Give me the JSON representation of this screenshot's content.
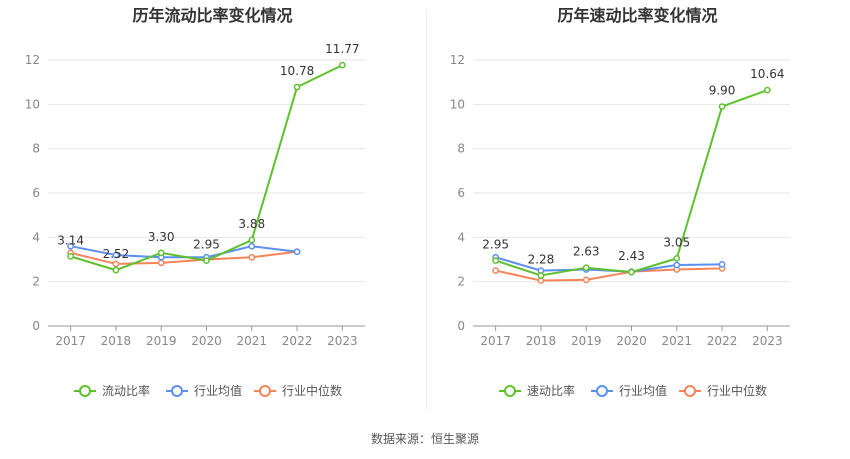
{
  "source_label": "数据来源：恒生聚源",
  "colors": {
    "main": "#5ec12c",
    "avg": "#5b8ff0",
    "median": "#f5845a",
    "grid": "#e6e6e6",
    "axis": "#999999"
  },
  "chart_data": [
    {
      "type": "line",
      "title": "历年流动比率变化情况",
      "x": [
        "2017",
        "2018",
        "2019",
        "2020",
        "2021",
        "2022",
        "2023"
      ],
      "ylim": [
        0,
        12
      ],
      "yticks": [
        0,
        2,
        4,
        6,
        8,
        10,
        12
      ],
      "grid": true,
      "legend_position": "bottom",
      "series": [
        {
          "name": "流动比率",
          "values": [
            3.14,
            2.52,
            3.3,
            2.95,
            3.88,
            10.78,
            11.77
          ],
          "labels": [
            "3.14",
            "2.52",
            "3.30",
            "2.95",
            "3.88",
            "10.78",
            "11.77"
          ]
        },
        {
          "name": "行业均值",
          "values": [
            3.6,
            3.2,
            3.1,
            3.1,
            3.6,
            3.35,
            null
          ]
        },
        {
          "name": "行业中位数",
          "values": [
            3.3,
            2.8,
            2.85,
            3.0,
            3.1,
            3.35,
            null
          ]
        }
      ]
    },
    {
      "type": "line",
      "title": "历年速动比率变化情况",
      "x": [
        "2017",
        "2018",
        "2019",
        "2020",
        "2021",
        "2022",
        "2023"
      ],
      "ylim": [
        0,
        12
      ],
      "yticks": [
        0,
        2,
        4,
        6,
        8,
        10,
        12
      ],
      "grid": true,
      "legend_position": "bottom",
      "series": [
        {
          "name": "速动比率",
          "values": [
            2.95,
            2.28,
            2.63,
            2.43,
            3.05,
            9.9,
            10.64
          ],
          "labels": [
            "2.95",
            "2.28",
            "2.63",
            "2.43",
            "3.05",
            "9.90",
            "10.64"
          ]
        },
        {
          "name": "行业均值",
          "values": [
            3.1,
            2.5,
            2.55,
            2.45,
            2.75,
            2.78,
            null
          ]
        },
        {
          "name": "行业中位数",
          "values": [
            2.5,
            2.05,
            2.08,
            2.45,
            2.55,
            2.6,
            null
          ]
        }
      ]
    }
  ]
}
